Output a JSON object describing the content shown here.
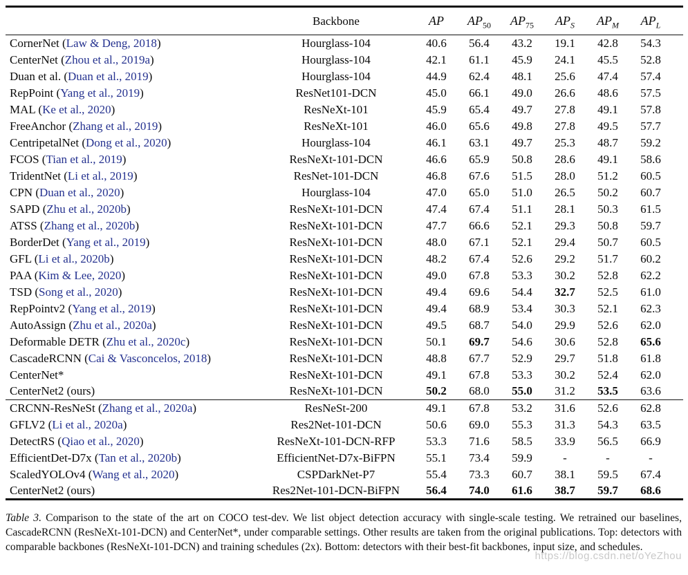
{
  "colors": {
    "citation": "#24318f",
    "watermark": "#c9c9c9",
    "rule": "#111111"
  },
  "table": {
    "headers": {
      "method": "",
      "backbone": "Backbone",
      "metrics": [
        {
          "base": "AP",
          "sub": ""
        },
        {
          "base": "AP",
          "sub": "50"
        },
        {
          "base": "AP",
          "sub": "75"
        },
        {
          "base": "AP",
          "sub": "S"
        },
        {
          "base": "AP",
          "sub": "M"
        },
        {
          "base": "AP",
          "sub": "L"
        }
      ]
    },
    "sections": [
      {
        "rows": [
          {
            "name": "CornerNet",
            "cite": "Law & Deng, 2018",
            "backbone": "Hourglass-104",
            "values": [
              "40.6",
              "56.4",
              "43.2",
              "19.1",
              "42.8",
              "54.3"
            ],
            "bold": []
          },
          {
            "name": "CenterNet",
            "cite": "Zhou et al., 2019a",
            "backbone": "Hourglass-104",
            "values": [
              "42.1",
              "61.1",
              "45.9",
              "24.1",
              "45.5",
              "52.8"
            ],
            "bold": []
          },
          {
            "name": "Duan et al.",
            "cite": "Duan et al., 2019",
            "backbone": "Hourglass-104",
            "values": [
              "44.9",
              "62.4",
              "48.1",
              "25.6",
              "47.4",
              "57.4"
            ],
            "bold": []
          },
          {
            "name": "RepPoint",
            "cite": "Yang et al., 2019",
            "backbone": "ResNet101-DCN",
            "values": [
              "45.0",
              "66.1",
              "49.0",
              "26.6",
              "48.6",
              "57.5"
            ],
            "bold": []
          },
          {
            "name": "MAL",
            "cite": "Ke et al., 2020",
            "backbone": "ResNeXt-101",
            "values": [
              "45.9",
              "65.4",
              "49.7",
              "27.8",
              "49.1",
              "57.8"
            ],
            "bold": []
          },
          {
            "name": "FreeAnchor",
            "cite": "Zhang et al., 2019",
            "backbone": "ResNeXt-101",
            "values": [
              "46.0",
              "65.6",
              "49.8",
              "27.8",
              "49.5",
              "57.7"
            ],
            "bold": []
          },
          {
            "name": "CentripetalNet",
            "cite": "Dong et al., 2020",
            "backbone": "Hourglass-104",
            "values": [
              "46.1",
              "63.1",
              "49.7",
              "25.3",
              "48.7",
              "59.2"
            ],
            "bold": []
          },
          {
            "name": "FCOS",
            "cite": "Tian et al., 2019",
            "backbone": "ResNeXt-101-DCN",
            "values": [
              "46.6",
              "65.9",
              "50.8",
              "28.6",
              "49.1",
              "58.6"
            ],
            "bold": []
          },
          {
            "name": "TridentNet",
            "cite": "Li et al., 2019",
            "backbone": "ResNet-101-DCN",
            "values": [
              "46.8",
              "67.6",
              "51.5",
              "28.0",
              "51.2",
              "60.5"
            ],
            "bold": []
          },
          {
            "name": "CPN",
            "cite": "Duan et al., 2020",
            "backbone": "Hourglass-104",
            "values": [
              "47.0",
              "65.0",
              "51.0",
              "26.5",
              "50.2",
              "60.7"
            ],
            "bold": []
          },
          {
            "name": "SAPD",
            "cite": "Zhu et al., 2020b",
            "backbone": "ResNeXt-101-DCN",
            "values": [
              "47.4",
              "67.4",
              "51.1",
              "28.1",
              "50.3",
              "61.5"
            ],
            "bold": []
          },
          {
            "name": "ATSS",
            "cite": "Zhang et al., 2020b",
            "backbone": "ResNeXt-101-DCN",
            "values": [
              "47.7",
              "66.6",
              "52.1",
              "29.3",
              "50.8",
              "59.7"
            ],
            "bold": []
          },
          {
            "name": "BorderDet",
            "cite": "Yang et al., 2019",
            "backbone": "ResNeXt-101-DCN",
            "values": [
              "48.0",
              "67.1",
              "52.1",
              "29.4",
              "50.7",
              "60.5"
            ],
            "bold": []
          },
          {
            "name": "GFL",
            "cite": "Li et al., 2020b",
            "backbone": "ResNeXt-101-DCN",
            "values": [
              "48.2",
              "67.4",
              "52.6",
              "29.2",
              "51.7",
              "60.2"
            ],
            "bold": []
          },
          {
            "name": "PAA",
            "cite": "Kim & Lee, 2020",
            "backbone": "ResNeXt-101-DCN",
            "values": [
              "49.0",
              "67.8",
              "53.3",
              "30.2",
              "52.8",
              "62.2"
            ],
            "bold": []
          },
          {
            "name": "TSD",
            "cite": "Song et al., 2020",
            "backbone": "ResNeXt-101-DCN",
            "values": [
              "49.4",
              "69.6",
              "54.4",
              "32.7",
              "52.5",
              "61.0"
            ],
            "bold": [
              3
            ]
          },
          {
            "name": "RepPointv2",
            "cite": "Yang et al., 2019",
            "backbone": "ResNeXt-101-DCN",
            "values": [
              "49.4",
              "68.9",
              "53.4",
              "30.3",
              "52.1",
              "62.3"
            ],
            "bold": []
          },
          {
            "name": "AutoAssign",
            "cite": "Zhu et al., 2020a",
            "backbone": "ResNeXt-101-DCN",
            "values": [
              "49.5",
              "68.7",
              "54.0",
              "29.9",
              "52.6",
              "62.0"
            ],
            "bold": []
          },
          {
            "name": "Deformable DETR",
            "cite": "Zhu et al., 2020c",
            "backbone": "ResNeXt-101-DCN",
            "values": [
              "50.1",
              "69.7",
              "54.6",
              "30.6",
              "52.8",
              "65.6"
            ],
            "bold": [
              1,
              5
            ]
          },
          {
            "name": "CascadeRCNN",
            "cite": "Cai & Vasconcelos, 2018",
            "backbone": "ResNeXt-101-DCN",
            "values": [
              "48.8",
              "67.7",
              "52.9",
              "29.7",
              "51.8",
              "61.8"
            ],
            "bold": []
          },
          {
            "name": "CenterNet*",
            "cite": null,
            "backbone": "ResNeXt-101-DCN",
            "values": [
              "49.1",
              "67.8",
              "53.3",
              "30.2",
              "52.4",
              "62.0"
            ],
            "bold": []
          },
          {
            "name": "CenterNet2 (ours)",
            "cite": null,
            "backbone": "ResNeXt-101-DCN",
            "values": [
              "50.2",
              "68.0",
              "55.0",
              "31.2",
              "53.5",
              "63.6"
            ],
            "bold": [
              0,
              2,
              4
            ]
          }
        ]
      },
      {
        "rows": [
          {
            "name": "CRCNN-ResNeSt",
            "cite": "Zhang et al., 2020a",
            "backbone": "ResNeSt-200",
            "values": [
              "49.1",
              "67.8",
              "53.2",
              "31.6",
              "52.6",
              "62.8"
            ],
            "bold": []
          },
          {
            "name": "GFLV2",
            "cite": "Li et al., 2020a",
            "backbone": "Res2Net-101-DCN",
            "values": [
              "50.6",
              "69.0",
              "55.3",
              "31.3",
              "54.3",
              "63.5"
            ],
            "bold": []
          },
          {
            "name": "DetectRS",
            "cite": "Qiao et al., 2020",
            "backbone": "ResNeXt-101-DCN-RFP",
            "values": [
              "53.3",
              "71.6",
              "58.5",
              "33.9",
              "56.5",
              "66.9"
            ],
            "bold": []
          },
          {
            "name": "EfficientDet-D7x",
            "cite": "Tan et al., 2020b",
            "backbone": "EfficientNet-D7x-BiFPN",
            "values": [
              "55.1",
              "73.4",
              "59.9",
              "-",
              "-",
              "-"
            ],
            "bold": []
          },
          {
            "name": "ScaledYOLOv4",
            "cite": "Wang et al., 2020",
            "backbone": "CSPDarkNet-P7",
            "values": [
              "55.4",
              "73.3",
              "60.7",
              "38.1",
              "59.5",
              "67.4"
            ],
            "bold": []
          },
          {
            "name": "CenterNet2 (ours)",
            "cite": null,
            "backbone": "Res2Net-101-DCN-BiFPN",
            "values": [
              "56.4",
              "74.0",
              "61.6",
              "38.7",
              "59.7",
              "68.6"
            ],
            "bold": [
              0,
              1,
              2,
              3,
              4,
              5
            ]
          }
        ]
      }
    ]
  },
  "caption": {
    "label": "Table 3.",
    "text": " Comparison to the state of the art on COCO test-dev. We list object detection accuracy with single-scale testing. We retrained our baselines, CascadeRCNN (ResNeXt-101-DCN) and CenterNet*, under comparable settings. Other results are taken from the original publications. Top: detectors with comparable backbones (ResNeXt-101-DCN) and training schedules (2x). Bottom: detectors with their best-fit backbones, input size, and schedules."
  },
  "watermark": "https://blog.csdn.net/oYeZhou"
}
